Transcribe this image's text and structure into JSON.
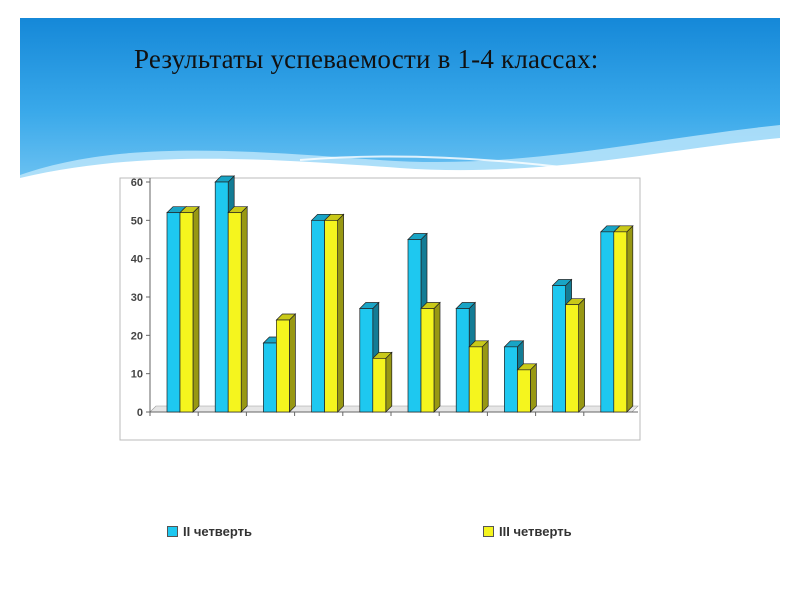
{
  "slide": {
    "title": "Результаты успеваемости в 1-4 классах:"
  },
  "chart_data": {
    "type": "bar",
    "title": "",
    "xlabel": "",
    "ylabel": "",
    "ylim": [
      0,
      60
    ],
    "yticks": [
      0,
      10,
      20,
      30,
      40,
      50,
      60
    ],
    "grid": false,
    "legend_position": "bottom",
    "categories": [
      "",
      "",
      "",
      "",
      "",
      "",
      "",
      "",
      "",
      ""
    ],
    "series": [
      {
        "name": "II четверть",
        "color": "#1ec8f0",
        "values": [
          52,
          60,
          18,
          50,
          27,
          45,
          27,
          17,
          33,
          47
        ]
      },
      {
        "name": "III четверть",
        "color": "#f5f51e",
        "values": [
          52,
          52,
          24,
          50,
          14,
          27,
          17,
          11,
          28,
          47
        ]
      }
    ]
  }
}
